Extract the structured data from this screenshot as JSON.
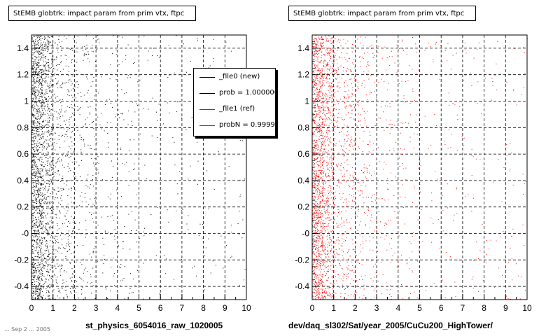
{
  "page": {
    "footer_stamp": "... Sep 2 ... 2005"
  },
  "legend": {
    "items": [
      {
        "label": "_file0 (new)",
        "color": "#000000"
      },
      {
        "label": "prob = 1.000000",
        "color": "#000000"
      },
      {
        "label": "_file1 (ref)",
        "color": "#ff0000"
      },
      {
        "label": "probN = 0.999980",
        "color": "#ff0000"
      }
    ]
  },
  "chart_data": [
    {
      "type": "scatter",
      "title": "StEMB globtrk: impact param from prim vtx, ftpc",
      "xlabel": "st_physics_6054016_raw_1020005",
      "ylabel": "",
      "xlim": [
        0,
        10
      ],
      "ylim": [
        -0.5,
        1.5
      ],
      "x_ticks": [
        "0",
        "1",
        "2",
        "3",
        "4",
        "5",
        "6",
        "7",
        "8",
        "9",
        "10"
      ],
      "y_ticks": [
        "-0.4",
        "-0.2",
        "-0",
        "0.2",
        "0.4",
        "0.6",
        "0.8",
        "1",
        "1.2",
        "1.4"
      ],
      "y_tick_values": [
        -0.4,
        -0.2,
        0,
        0.2,
        0.4,
        0.6,
        0.8,
        1.0,
        1.2,
        1.4
      ],
      "grid": true,
      "color": "#000000",
      "series": [
        {
          "name": "_file0 (new)",
          "color": "#000000",
          "density_by_x": [
            {
              "x_range": [
                0,
                0.5
              ],
              "relative_density": 1.0
            },
            {
              "x_range": [
                0.5,
                1
              ],
              "relative_density": 0.55
            },
            {
              "x_range": [
                1,
                2
              ],
              "relative_density": 0.18
            },
            {
              "x_range": [
                2,
                3
              ],
              "relative_density": 0.08
            },
            {
              "x_range": [
                3,
                5
              ],
              "relative_density": 0.035
            },
            {
              "x_range": [
                5,
                10
              ],
              "relative_density": 0.012
            }
          ]
        }
      ]
    },
    {
      "type": "scatter",
      "title": "StEMB globtrk: impact param from prim vtx, ftpc",
      "xlabel": "dev/daq_sl302/Sat/year_2005/CuCu200_HighTower/",
      "ylabel": "",
      "xlim": [
        0,
        10
      ],
      "ylim": [
        -0.5,
        1.5
      ],
      "x_ticks": [
        "0",
        "1",
        "2",
        "3",
        "4",
        "5",
        "6",
        "7",
        "8",
        "9",
        "10"
      ],
      "y_ticks": [
        "-0.4",
        "-0.2",
        "-0",
        "0.2",
        "0.4",
        "0.6",
        "0.8",
        "1",
        "1.2",
        "1.4"
      ],
      "y_tick_values": [
        -0.4,
        -0.2,
        0,
        0.2,
        0.4,
        0.6,
        0.8,
        1.0,
        1.2,
        1.4
      ],
      "grid": true,
      "color": "#ff0000",
      "series": [
        {
          "name": "_file1 (ref)",
          "color": "#ff0000",
          "density_by_x": [
            {
              "x_range": [
                0,
                0.5
              ],
              "relative_density": 1.0
            },
            {
              "x_range": [
                0.5,
                1
              ],
              "relative_density": 0.5
            },
            {
              "x_range": [
                1,
                2
              ],
              "relative_density": 0.18
            },
            {
              "x_range": [
                2,
                3
              ],
              "relative_density": 0.09
            },
            {
              "x_range": [
                3,
                5
              ],
              "relative_density": 0.04
            },
            {
              "x_range": [
                5,
                10
              ],
              "relative_density": 0.015
            }
          ]
        }
      ]
    }
  ]
}
